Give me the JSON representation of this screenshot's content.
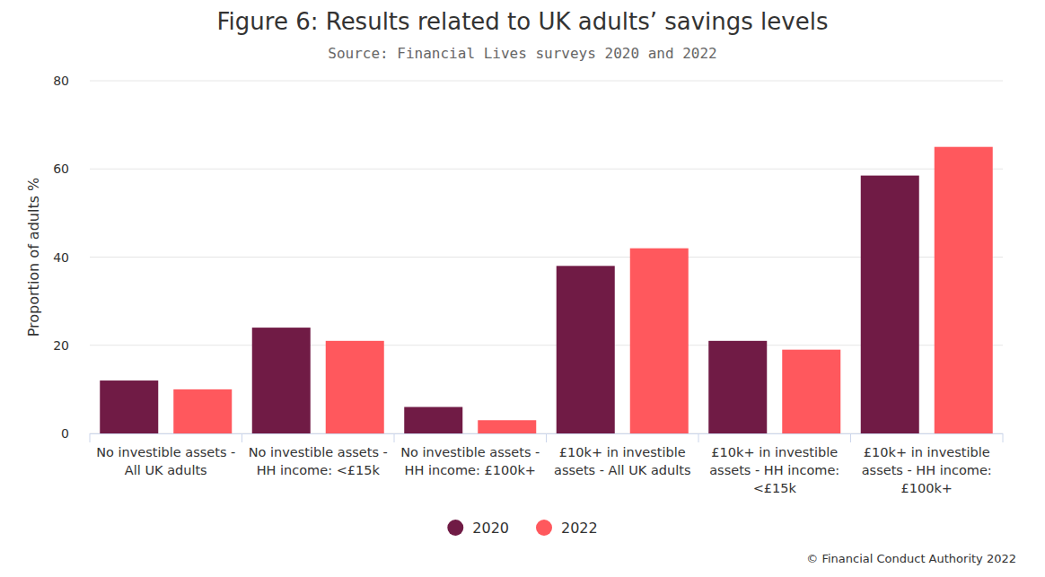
{
  "chart_data": {
    "type": "bar",
    "title": "Figure 6: Results related to UK adults’ savings levels",
    "subtitle": "Source: Financial Lives surveys 2020 and 2022",
    "y_label": "Proportion of adults %",
    "categories": [
      "No investible assets - All UK adults",
      "No investible assets - HH income: <£15k",
      "No investible assets - HH income: £100k+",
      "£10k+ in investible assets - All UK adults",
      "£10k+ in investible assets - HH income: <£15k",
      "£10k+ in investible assets - HH income: £100k+"
    ],
    "series": [
      {
        "name": "2020",
        "color": "#701b45",
        "values": [
          12,
          24,
          6,
          38,
          21,
          58.5
        ]
      },
      {
        "name": "2022",
        "color": "#ff585d",
        "values": [
          10,
          21,
          3,
          42,
          19,
          65
        ]
      }
    ],
    "ylim": [
      0,
      80
    ],
    "yticks": [
      0,
      20,
      40,
      60,
      80
    ],
    "grid": true,
    "legend": "bottom",
    "annotations": [
      "© Financial Conduct Authority 2022"
    ]
  }
}
